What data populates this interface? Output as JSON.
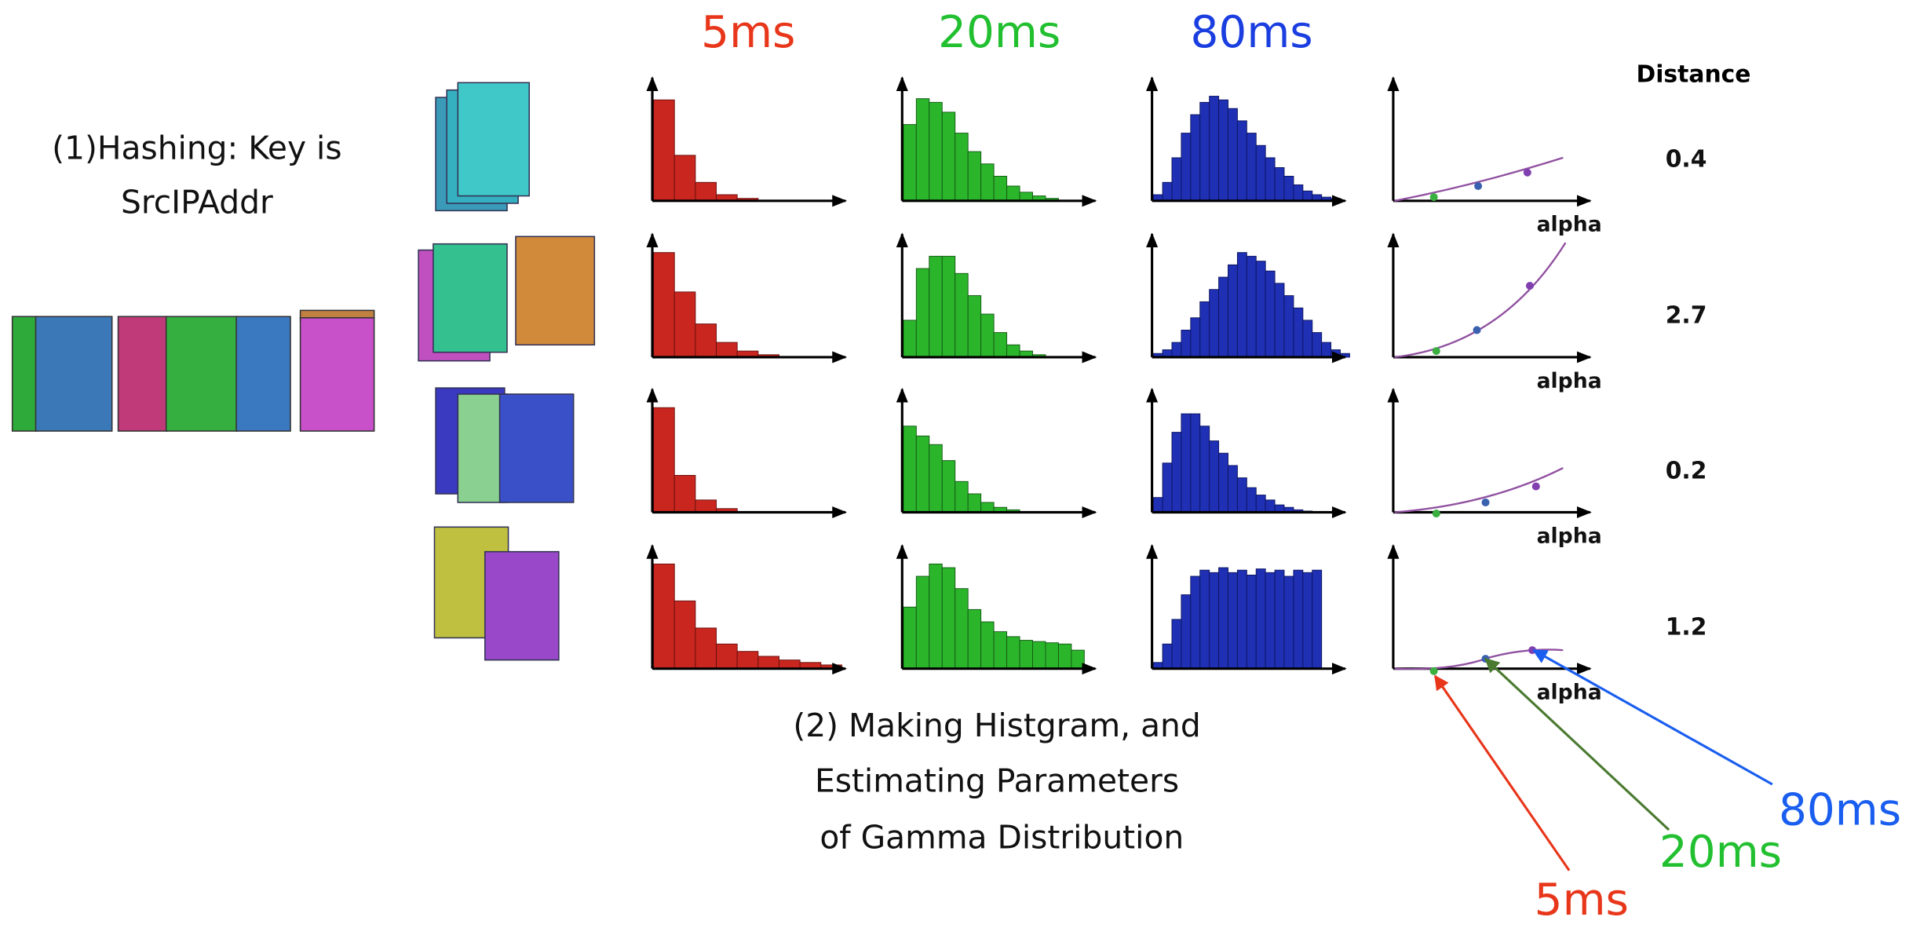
{
  "columns": [
    "5ms",
    "20ms",
    "80ms"
  ],
  "distance_header": "Distance",
  "hashing_caption": [
    "(1)Hashing: Key is",
    "SrcIPAddr"
  ],
  "histogram_caption": [
    "(2) Making Histgram, and",
    "Estimating Parameters",
    "of Gamma Distribution"
  ],
  "arrow_labels": [
    "80ms",
    "20ms",
    "5ms"
  ],
  "rows": [
    {
      "distance": 0.4,
      "axis_label": "alpha",
      "histograms": [
        [
          0.82,
          0.37,
          0.15,
          0.05,
          0.02
        ],
        [
          0.62,
          0.83,
          0.8,
          0.72,
          0.55,
          0.4,
          0.3,
          0.2,
          0.12,
          0.07,
          0.04,
          0.02
        ],
        [
          0.05,
          0.15,
          0.35,
          0.55,
          0.7,
          0.8,
          0.85,
          0.82,
          0.75,
          0.65,
          0.55,
          0.45,
          0.35,
          0.27,
          0.2,
          0.13,
          0.08,
          0.05,
          0.03,
          0.02
        ]
      ]
    },
    {
      "distance": 2.7,
      "axis_label": "alpha",
      "histograms": [
        [
          0.85,
          0.53,
          0.27,
          0.12,
          0.05,
          0.02
        ],
        [
          0.3,
          0.72,
          0.82,
          0.82,
          0.68,
          0.5,
          0.35,
          0.2,
          0.1,
          0.05,
          0.02
        ],
        [
          0.03,
          0.06,
          0.12,
          0.22,
          0.32,
          0.45,
          0.55,
          0.65,
          0.75,
          0.85,
          0.82,
          0.78,
          0.7,
          0.6,
          0.5,
          0.4,
          0.3,
          0.2,
          0.12,
          0.06,
          0.03
        ]
      ]
    },
    {
      "distance": 0.2,
      "axis_label": "alpha",
      "histograms": [
        [
          0.85,
          0.3,
          0.1,
          0.03
        ],
        [
          0.7,
          0.62,
          0.55,
          0.42,
          0.25,
          0.15,
          0.08,
          0.04,
          0.02
        ],
        [
          0.12,
          0.4,
          0.65,
          0.8,
          0.8,
          0.7,
          0.58,
          0.48,
          0.38,
          0.28,
          0.2,
          0.14,
          0.1,
          0.06,
          0.04,
          0.02,
          0.01
        ]
      ]
    },
    {
      "distance": 1.2,
      "axis_label": "alpha",
      "histograms": [
        [
          0.85,
          0.55,
          0.33,
          0.2,
          0.14,
          0.1,
          0.07,
          0.05,
          0.03
        ],
        [
          0.5,
          0.75,
          0.85,
          0.82,
          0.65,
          0.48,
          0.38,
          0.3,
          0.26,
          0.23,
          0.22,
          0.21,
          0.2,
          0.15
        ],
        [
          0.05,
          0.2,
          0.4,
          0.6,
          0.75,
          0.8,
          0.78,
          0.82,
          0.78,
          0.8,
          0.76,
          0.81,
          0.78,
          0.8,
          0.75,
          0.8,
          0.78,
          0.8
        ]
      ]
    }
  ]
}
